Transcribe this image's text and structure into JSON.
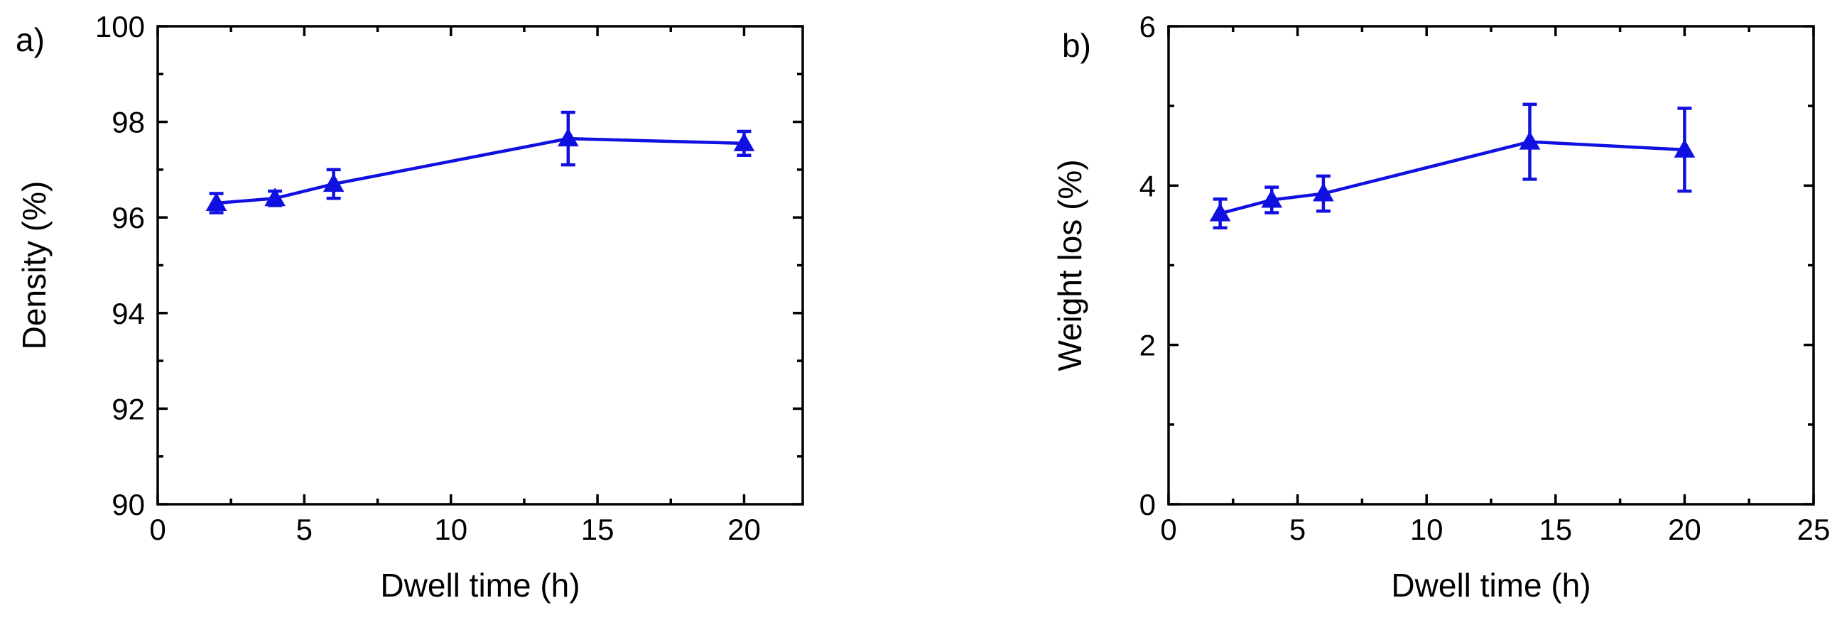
{
  "chart_data": [
    {
      "panel_label": "a)",
      "type": "line",
      "xlabel": "Dwell time (h)",
      "ylabel": "Density (%)",
      "xlim": [
        0,
        22
      ],
      "ylim": [
        90,
        100
      ],
      "xticks": [
        "0",
        "5",
        "10",
        "15",
        "20"
      ],
      "yticks": [
        "90",
        "92",
        "94",
        "96",
        "98",
        "100"
      ],
      "xtick_values": [
        0,
        5,
        10,
        15,
        20
      ],
      "ytick_values": [
        90,
        92,
        94,
        96,
        98,
        100
      ],
      "grid": false,
      "marker": "triangle-up",
      "color": "#1010e0",
      "series": [
        {
          "x": [
            2,
            4,
            6,
            14,
            20
          ],
          "y": [
            96.3,
            96.4,
            96.7,
            97.65,
            97.55
          ],
          "error": [
            0.2,
            0.15,
            0.3,
            0.55,
            0.25
          ]
        }
      ]
    },
    {
      "panel_label": "b)",
      "type": "line",
      "xlabel": "Dwell time (h)",
      "ylabel": "Weight los (%)",
      "xlim": [
        0,
        25
      ],
      "ylim": [
        0,
        6
      ],
      "xticks": [
        "0",
        "5",
        "10",
        "15",
        "20",
        "25"
      ],
      "yticks": [
        "0",
        "2",
        "4",
        "6"
      ],
      "xtick_values": [
        0,
        5,
        10,
        15,
        20,
        25
      ],
      "ytick_values": [
        0,
        2,
        4,
        6
      ],
      "grid": false,
      "marker": "triangle-up",
      "color": "#1010e0",
      "series": [
        {
          "x": [
            2,
            4,
            6,
            14,
            20
          ],
          "y": [
            3.65,
            3.82,
            3.9,
            4.55,
            4.45
          ],
          "error": [
            0.18,
            0.16,
            0.22,
            0.47,
            0.52
          ]
        }
      ]
    }
  ]
}
